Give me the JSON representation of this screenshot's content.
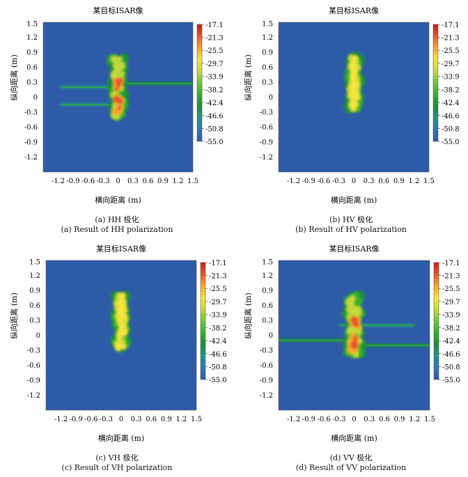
{
  "figure": {
    "colormap": [
      "#2e5ba8",
      "#2f78b4",
      "#23938a",
      "#1c8f3c",
      "#34b02e",
      "#6cc73a",
      "#c5d93a",
      "#f4e53a",
      "#f7a52e",
      "#e8572a",
      "#c81f1c"
    ],
    "background_color": "#2e5ba8"
  },
  "chart_data": [
    {
      "type": "heatmap",
      "panel_id": "a",
      "title": "某目标ISAR像",
      "xlabel": "横向距离 (m)",
      "ylabel": "纵向距离 (m)",
      "xlim": [
        -1.5,
        1.5
      ],
      "ylim": [
        -1.5,
        1.5
      ],
      "x_ticks": [
        "-1.2",
        "-0.9",
        "-0.6",
        "-0.3",
        "0",
        "0.3",
        "0.6",
        "0.9",
        "1.2",
        "1.5"
      ],
      "y_ticks": [
        "1.5",
        "1.2",
        "0.9",
        "0.6",
        "0.3",
        "0",
        "-0.3",
        "-0.6",
        "-0.9",
        "-1.2"
      ],
      "colorbar_ticks": [
        "-17.1",
        "-21.3",
        "-25.5",
        "-29.7",
        "-33.9",
        "-38.2",
        "-42.4",
        "-46.6",
        "-50.8",
        "-55.0"
      ],
      "colorbar_range": [
        -55.0,
        -17.1
      ],
      "caption_cn": "(a) HH 极化",
      "caption_en": "(a) Result of HH polarization",
      "target": {
        "center_x": 0.0,
        "y_min": -0.4,
        "y_max": 0.8,
        "half_width": 0.13,
        "peak_db": -17.1
      },
      "streaks": [
        {
          "x_start": -1.15,
          "x_end": 0.0,
          "y": 0.2,
          "db": -46
        },
        {
          "x_start": -1.15,
          "x_end": 0.0,
          "y": -0.15,
          "db": -47
        },
        {
          "x_start": 0.12,
          "x_end": 1.5,
          "y": 0.27,
          "db": -44
        }
      ]
    },
    {
      "type": "heatmap",
      "panel_id": "b",
      "title": "某目标ISAR像",
      "xlabel": "横向距离 (m)",
      "ylabel": "纵向距离 (m)",
      "xlim": [
        -1.5,
        1.5
      ],
      "ylim": [
        -1.5,
        1.5
      ],
      "x_ticks": [
        "-1.2",
        "-0.9",
        "-0.6",
        "-0.3",
        "0",
        "0.3",
        "0.6",
        "0.9",
        "1.2",
        "1.5"
      ],
      "y_ticks": [
        "1.5",
        "1.2",
        "0.9",
        "0.6",
        "0.3",
        "0",
        "-0.3",
        "-0.6",
        "-0.9",
        "-1.2"
      ],
      "colorbar_ticks": [
        "-17.1",
        "-21.3",
        "-25.5",
        "-29.7",
        "-33.9",
        "-38.2",
        "-42.4",
        "-46.6",
        "-50.8",
        "-55.0"
      ],
      "colorbar_range": [
        -55.0,
        -17.1
      ],
      "caption_cn": "(b) HV 极化",
      "caption_en": "(b) Result of HV polarization",
      "target": {
        "center_x": 0.0,
        "y_min": -0.25,
        "y_max": 0.8,
        "half_width": 0.12,
        "peak_db": -29.7
      },
      "streaks": []
    },
    {
      "type": "heatmap",
      "panel_id": "c",
      "title": "某目标ISAR像",
      "xlabel": "横向距离 (m)",
      "ylabel": "纵向距离 (m)",
      "xlim": [
        -1.5,
        1.5
      ],
      "ylim": [
        -1.5,
        1.5
      ],
      "x_ticks": [
        "-1.2",
        "-0.9",
        "-0.6",
        "-0.3",
        "0",
        "0.3",
        "0.6",
        "0.9",
        "1.2",
        "1.5"
      ],
      "y_ticks": [
        "1.5",
        "1.2",
        "0.9",
        "0.6",
        "0.3",
        "0",
        "-0.3",
        "-0.6",
        "-0.9",
        "-1.2"
      ],
      "colorbar_ticks": [
        "-17.1",
        "-21.3",
        "-25.5",
        "-29.7",
        "-33.9",
        "-38.2",
        "-42.4",
        "-46.6",
        "-50.8",
        "-55.0"
      ],
      "colorbar_range": [
        -55.0,
        -17.1
      ],
      "caption_cn": "(c) VH 极化",
      "caption_en": "(c) Result of VH polarization",
      "target": {
        "center_x": 0.0,
        "y_min": -0.25,
        "y_max": 0.8,
        "half_width": 0.12,
        "peak_db": -29.7
      },
      "streaks": []
    },
    {
      "type": "heatmap",
      "panel_id": "d",
      "title": "某目标ISAR像",
      "xlabel": "横向距离 (m)",
      "ylabel": "纵向距离 (m)",
      "xlim": [
        -1.5,
        1.5
      ],
      "ylim": [
        -1.5,
        1.5
      ],
      "x_ticks": [
        "-1.2",
        "-0.9",
        "-0.6",
        "-0.3",
        "0",
        "0.3",
        "0.6",
        "0.9",
        "1.2",
        "1.5"
      ],
      "y_ticks": [
        "1.5",
        "1.2",
        "0.9",
        "0.6",
        "0.3",
        "0",
        "-0.3",
        "-0.6",
        "-0.9",
        "-1.2"
      ],
      "colorbar_ticks": [
        "-17.1",
        "-21.3",
        "-25.5",
        "-29.7",
        "-33.9",
        "-38.2",
        "-42.4",
        "-46.6",
        "-50.8",
        "-55.0"
      ],
      "colorbar_range": [
        -55.0,
        -17.1
      ],
      "caption_cn": "(d) VV 极化",
      "caption_en": "(d) Result of VV polarization",
      "target": {
        "center_x": 0.0,
        "y_min": -0.4,
        "y_max": 0.8,
        "half_width": 0.14,
        "peak_db": -17.1
      },
      "streaks": [
        {
          "x_start": -1.5,
          "x_end": -0.1,
          "y": -0.1,
          "db": -44
        },
        {
          "x_start": 0.1,
          "x_end": 1.5,
          "y": -0.2,
          "db": -45
        },
        {
          "x_start": -0.3,
          "x_end": 1.2,
          "y": 0.2,
          "db": -47
        }
      ]
    }
  ]
}
